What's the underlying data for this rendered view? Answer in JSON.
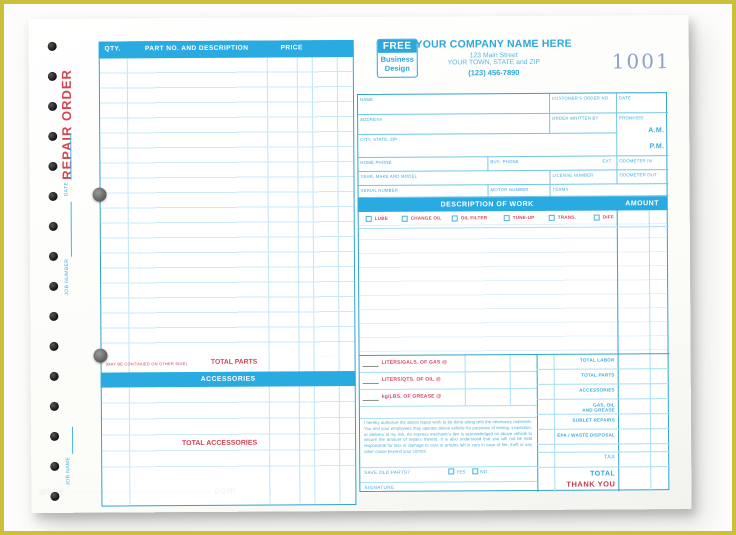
{
  "side": {
    "title": "REPAIR ORDER",
    "labels": [
      "DATE",
      "JOB NUMBER",
      "JOB NAME"
    ]
  },
  "letterhead": {
    "logo_line1": "FREE",
    "logo_line2": "Business",
    "logo_line3": "Design",
    "company": "YOUR COMPANY NAME HERE",
    "address": "123 Main Street",
    "city": "YOUR TOWN, STATE and ZIP",
    "phone": "(123) 456-7890",
    "form_number": "1001"
  },
  "parts": {
    "qty": "QTY.",
    "desc": "PART NO. AND DESCRIPTION",
    "price": "PRICE",
    "continued": "(MAY BE CONTINUED ON OTHER SIDE)",
    "total_parts": "TOTAL PARTS",
    "accessories": "ACCESSORIES",
    "total_accessories": "TOTAL ACCESSORIES"
  },
  "customer": {
    "name": "NAME",
    "order_no": "CUSTOMER'S ORDER NO.",
    "date": "DATE",
    "address": "ADDRESS",
    "written_by": "ORDER WRITTEN BY",
    "promised": "PROMISED",
    "am": "A.M.",
    "pm": "P.M.",
    "city": "CITY, STATE, ZIP",
    "home_phone": "HOME PHONE",
    "bus_phone": "BUS. PHONE",
    "ext": "EXT.",
    "odo_in": "ODOMETER IN",
    "year_make": "YEAR, MAKE AND MODEL",
    "license": "LICENSE NUMBER",
    "odo_out": "ODOMETER OUT",
    "serial": "SERIAL NUMBER",
    "motor": "MOTOR NUMBER",
    "terms": "TERMS"
  },
  "work": {
    "title": "DESCRIPTION OF WORK",
    "amount": "AMOUNT",
    "checkboxes": [
      "LUBE",
      "CHANGE OIL",
      "OIL FILTER",
      "TUNE-UP",
      "TRANS.",
      "DIFF."
    ]
  },
  "totals": {
    "fluids": [
      "LITERS/GALS. OF GAS @",
      "LITERS/QTS. OF OIL @",
      "kg/LBS. OF GREASE @"
    ],
    "rows": [
      "TOTAL LABOR",
      "TOTAL PARTS",
      "ACCESSORIES",
      "GAS, OIL\nAND GREASE",
      "SUBLET REPAIRS",
      "EPA / WASTE DISPOSAL"
    ],
    "tax": "TAX",
    "total": "TOTAL",
    "thank_you": "THANK YOU",
    "disclaimer": "I hereby authorize the above repair work to be done along with the necessary materials. You and your employees may operate above vehicle for purposes of testing, inspection, or delivery at my risk. An express mechanic's lien is acknowledged on above vehicle to secure the amount of repairs thereto. It is also understood that you will not be held responsible for loss or damage to cars or articles left in cars in case of fire, theft or any other cause beyond your control.",
    "save_parts": "SAVE OLD PARTS?",
    "yes": "YES",
    "no": "NO",
    "signature": "SIGNATURE"
  },
  "watermark": "www ································· com",
  "colors": {
    "accent_blue": "#29abe2",
    "line_teal": "#2fa3cc",
    "light_line": "#c9e9f7",
    "red": "#d6455f",
    "label_blue": "#3fa9d9",
    "frame_yellow": "#cdbe3b",
    "number_blue": "#8ca3c4"
  }
}
